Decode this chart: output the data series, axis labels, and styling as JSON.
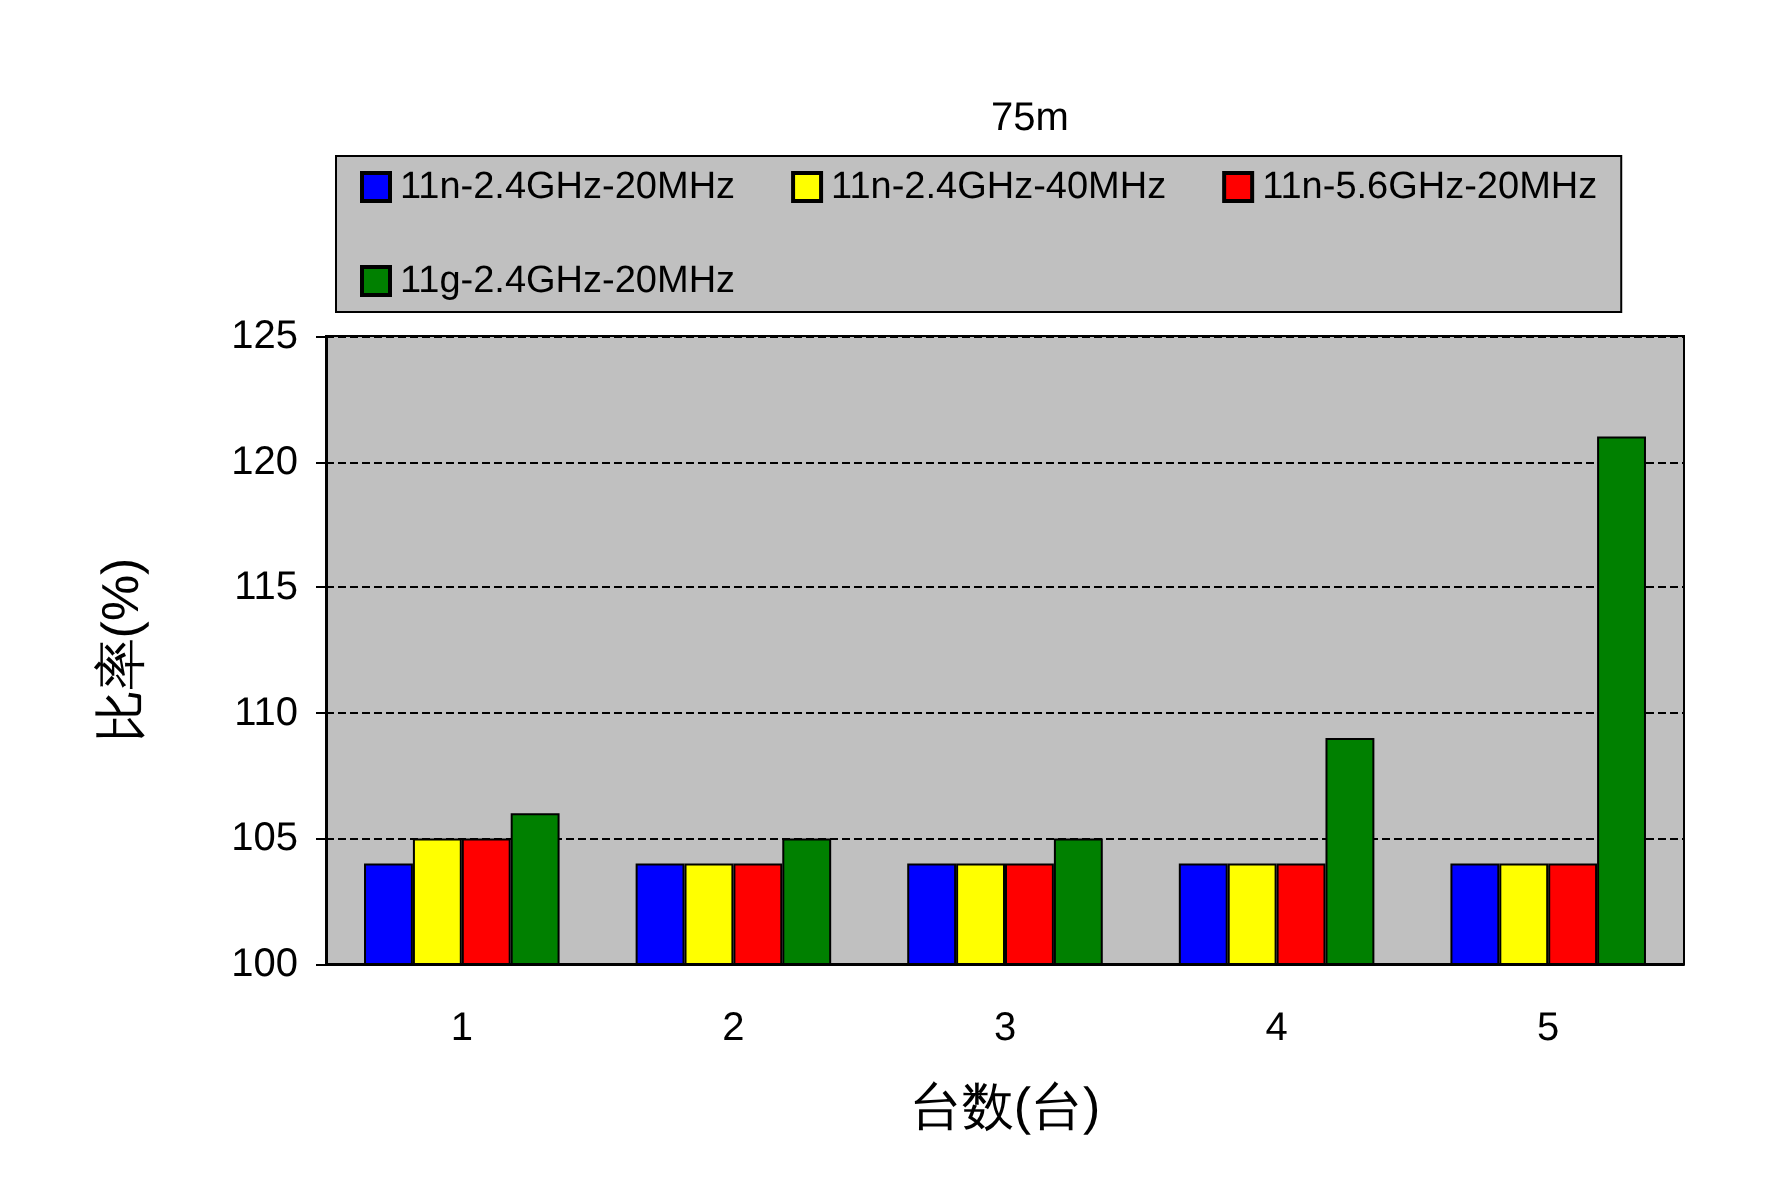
{
  "chart_data": {
    "type": "bar",
    "title": "75m",
    "xlabel": "台数(台)",
    "ylabel": "比率(%)",
    "categories": [
      "1",
      "2",
      "3",
      "4",
      "5"
    ],
    "series": [
      {
        "name": "11n-2.4GHz-20MHz",
        "color": "#0000ff",
        "values": [
          104,
          104,
          104,
          104,
          104
        ]
      },
      {
        "name": "11n-2.4GHz-40MHz",
        "color": "#ffff00",
        "values": [
          105,
          104,
          104,
          104,
          104
        ]
      },
      {
        "name": "11n-5.6GHz-20MHz",
        "color": "#ff0000",
        "values": [
          105,
          104,
          104,
          104,
          104
        ]
      },
      {
        "name": "11g-2.4GHz-20MHz",
        "color": "#008000",
        "values": [
          106,
          105,
          105,
          109,
          121
        ]
      }
    ],
    "ylim": [
      100,
      125
    ],
    "yticks": [
      100,
      105,
      110,
      115,
      120,
      125
    ],
    "grid": "y",
    "legend": "top"
  }
}
